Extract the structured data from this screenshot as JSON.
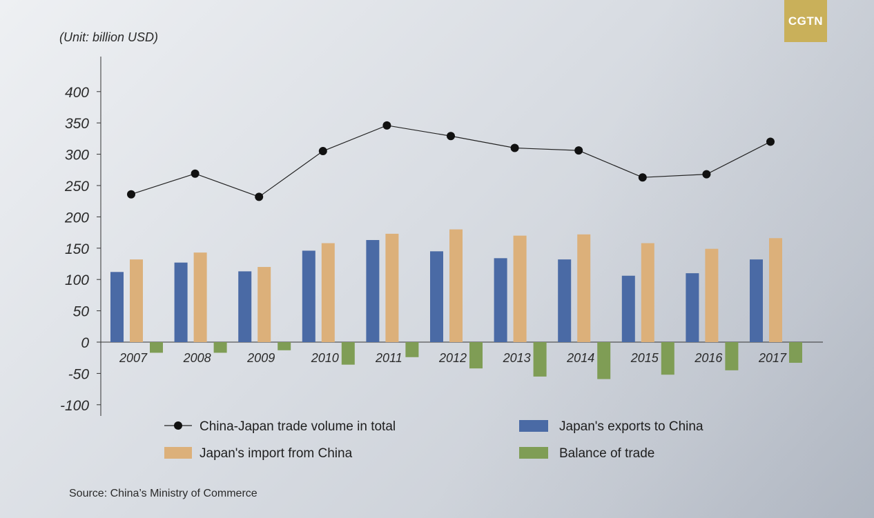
{
  "brand": {
    "logo_text": "CGTN",
    "logo_color": "#c9b05a"
  },
  "unit_label": "(Unit: billion USD)",
  "source": "Source: China’s Ministry of Commerce",
  "colors": {
    "exports": "#4a6aa5",
    "imports": "#dcb07a",
    "balance": "#7f9d55",
    "total": "#111111"
  },
  "chart_data": {
    "type": "bar",
    "title": "",
    "xlabel": "",
    "ylabel": "",
    "ylim": [
      -100,
      400
    ],
    "yticks": [
      "400",
      "350",
      "300",
      "250",
      "200",
      "150",
      "100",
      "50",
      "0",
      "-50",
      "-100"
    ],
    "ytick_values": [
      400,
      350,
      300,
      250,
      200,
      150,
      100,
      50,
      0,
      -50,
      -100
    ],
    "categories": [
      "2007",
      "2008",
      "2009",
      "2010",
      "2011",
      "2012",
      "2013",
      "2014",
      "2015",
      "2016",
      "2017"
    ],
    "series": [
      {
        "name": "China-Japan trade volume in total",
        "kind": "line",
        "values": [
          236,
          269,
          232,
          305,
          346,
          329,
          310,
          306,
          263,
          268,
          320
        ]
      },
      {
        "name": "Japan's exports to China",
        "kind": "bar",
        "values": [
          112,
          127,
          113,
          146,
          163,
          145,
          134,
          132,
          106,
          110,
          132
        ]
      },
      {
        "name": "Japan's import from China",
        "kind": "bar",
        "values": [
          132,
          143,
          120,
          158,
          173,
          180,
          170,
          172,
          158,
          149,
          166
        ]
      },
      {
        "name": "Balance of trade",
        "kind": "bar",
        "values": [
          -17,
          -17,
          -13,
          -36,
          -24,
          -42,
          -55,
          -59,
          -52,
          -45,
          -33
        ]
      }
    ],
    "legend_placement": "bottom",
    "grid": false
  }
}
